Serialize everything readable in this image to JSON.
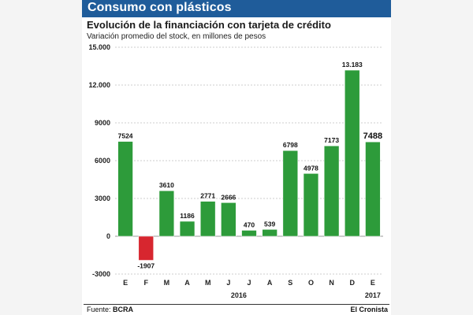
{
  "header": {
    "title": "Consumo con plásticos"
  },
  "source": {
    "label": "Fuente:",
    "value": "BCRA"
  },
  "brand": "El Cronista",
  "colors": {
    "header": "#1f5c9a",
    "positive": "#2d9b3a",
    "negative": "#d7262f",
    "grid": "#9a9a9a"
  },
  "chart_data": {
    "type": "bar",
    "title": "Evolución de la financiación con tarjeta de crédito",
    "subtitle": "Variación promedio del stock, en millones de pesos",
    "categories": [
      "E",
      "F",
      "M",
      "A",
      "M",
      "J",
      "J",
      "A",
      "S",
      "O",
      "N",
      "D",
      "E"
    ],
    "values": [
      7524,
      -1907,
      3610,
      1186,
      2771,
      2666,
      470,
      539,
      6798,
      4978,
      7173,
      13183,
      7488
    ],
    "value_labels": [
      "7524",
      "-1907",
      "3610",
      "1186",
      "2771",
      "2666",
      "470",
      "539",
      "6798",
      "4978",
      "7173",
      "13.183",
      "7488"
    ],
    "ylim": [
      -3000,
      15000
    ],
    "yticks": [
      -3000,
      0,
      3000,
      6000,
      9000,
      12000,
      15000
    ],
    "ytick_labels": [
      "-3000",
      "0",
      "3000",
      "6000",
      "9000",
      "12.000",
      "15.000"
    ],
    "year_labels": [
      "2016",
      "2017"
    ],
    "grid": true
  }
}
